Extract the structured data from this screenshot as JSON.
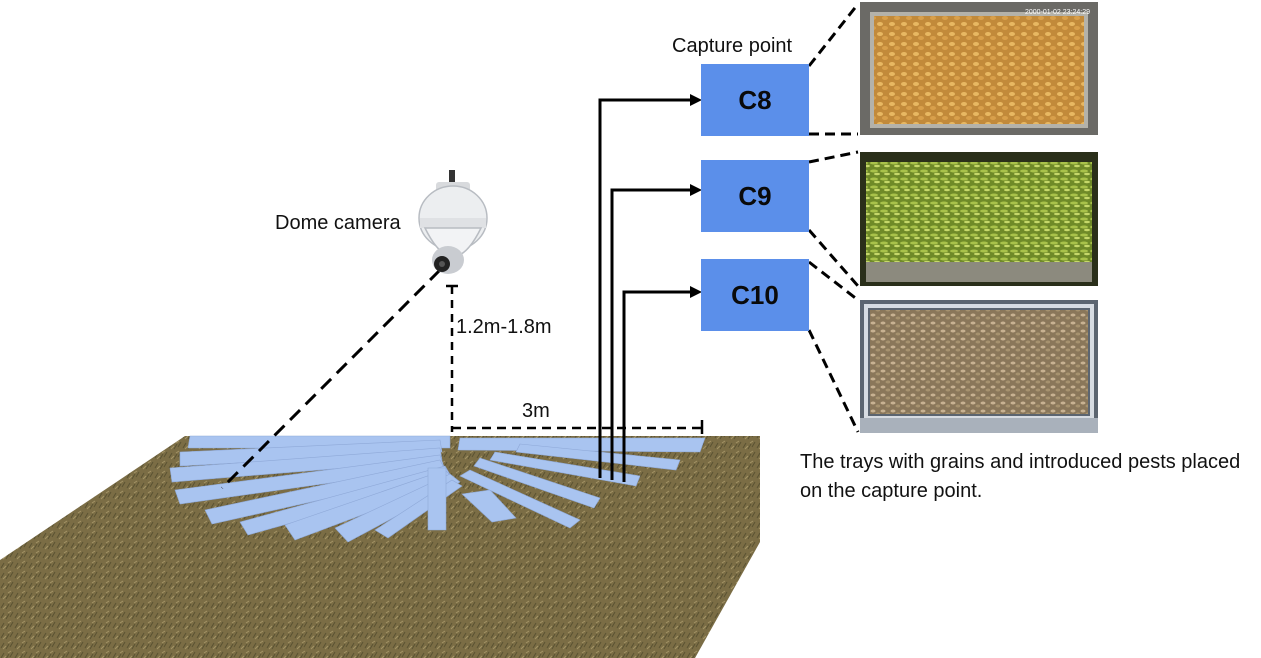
{
  "labels": {
    "dome_camera": "Dome camera",
    "height_range": "1.2m-1.8m",
    "distance": "3m",
    "capture_point": "Capture point"
  },
  "capture_points": [
    {
      "id": "C8",
      "label": "C8"
    },
    {
      "id": "C9",
      "label": "C9"
    },
    {
      "id": "C10",
      "label": "C10"
    }
  ],
  "photos": [
    {
      "name": "corn-tray-photo",
      "timestamp": "2000-01-02 23:24:29",
      "content": "corn kernels"
    },
    {
      "name": "mung-tray-photo",
      "content": "green grains"
    },
    {
      "name": "wheat-tray-photo",
      "content": "wheat grains"
    }
  ],
  "description": "The trays with grains and introduced pests placed on the capture point.",
  "colors": {
    "capture_box": "#5b8fea",
    "ground": "#7d6f46",
    "label_strip": "#a9c4f0",
    "line": "#000000"
  }
}
